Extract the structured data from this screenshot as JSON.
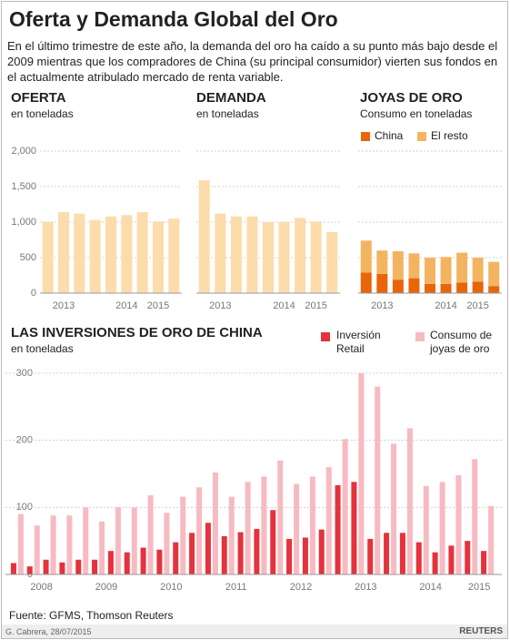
{
  "title": "Oferta y Demanda Global del Oro",
  "subtitle": "En el último trimestre de este año, la demanda del oro ha caído a su punto más bajo desde el 2009 mientras que los compradores de China (su principal consumidor) vierten sus fondos en el actualmente atribulado mercado de renta variable.",
  "source": "Fuente: GFMS,  Thomson Reuters",
  "credit": "G. Cabrera, 28/07/2015",
  "logo": "REUTERS",
  "chart_data": [
    {
      "type": "bar",
      "title": "OFERTA",
      "subtitle": "en toneladas",
      "categories": [
        null,
        "2013",
        null,
        null,
        null,
        "2014",
        null,
        "2015",
        null
      ],
      "values": [
        1000,
        1140,
        1120,
        1030,
        1080,
        1100,
        1140,
        1010,
        1050
      ],
      "color": "#fcdcab",
      "ylim": [
        0,
        2000
      ],
      "yticks": [
        0,
        500,
        {
          "value": 1000,
          "label": "1,000"
        },
        {
          "value": 1500,
          "label": "1,500"
        },
        {
          "value": 2000,
          "label": "2,000"
        }
      ],
      "grid": true
    },
    {
      "type": "bar",
      "title": "DEMANDA",
      "subtitle": "en toneladas",
      "categories": [
        null,
        "2013",
        null,
        null,
        null,
        "2014",
        null,
        "2015",
        null
      ],
      "values": [
        1590,
        1120,
        1080,
        1080,
        1000,
        1000,
        1060,
        1010,
        860
      ],
      "color": "#fcdcab",
      "ylim": [
        0,
        2000
      ],
      "yticks": [
        0,
        500,
        1000,
        1500,
        2000
      ],
      "grid": true
    },
    {
      "type": "stacked_bar",
      "title": "JOYAS DE ORO",
      "subtitle": "Consumo en toneladas",
      "categories": [
        null,
        "2013",
        null,
        null,
        null,
        "2014",
        null,
        "2015",
        null
      ],
      "series": [
        {
          "name": "China",
          "color": "#e8650a",
          "values": [
            290,
            270,
            190,
            210,
            130,
            130,
            150,
            160,
            100
          ]
        },
        {
          "name": "El resto",
          "color": "#f3b461",
          "values": [
            450,
            330,
            400,
            350,
            370,
            380,
            420,
            340,
            340
          ]
        }
      ],
      "ylim": [
        0,
        2000
      ],
      "yticks": [
        0,
        500,
        1000,
        1500,
        2000
      ],
      "grid": true
    },
    {
      "type": "grouped_bar",
      "title": "LAS INVERSIONES DE ORO DE CHINA",
      "subtitle": "en toneladas",
      "categories": [
        null,
        "2008",
        null,
        null,
        null,
        "2009",
        null,
        null,
        null,
        "2010",
        null,
        null,
        null,
        "2011",
        null,
        null,
        null,
        "2012",
        null,
        null,
        null,
        "2013",
        null,
        null,
        null,
        "2014",
        null,
        null,
        "2015",
        null
      ],
      "series": [
        {
          "name": "Inversión Retail",
          "color": "#e5323c",
          "values": [
            17,
            12,
            22,
            18,
            22,
            22,
            35,
            33,
            40,
            37,
            48,
            62,
            77,
            57,
            63,
            68,
            96,
            53,
            55,
            67,
            133,
            138,
            53,
            62,
            62,
            48,
            33,
            43,
            50,
            35
          ]
        },
        {
          "name": "Consumo de joyas de oro",
          "color": "#f7bac0",
          "values": [
            90,
            73,
            88,
            88,
            100,
            79,
            100,
            100,
            118,
            92,
            116,
            130,
            152,
            116,
            138,
            146,
            170,
            135,
            146,
            160,
            202,
            300,
            280,
            195,
            218,
            132,
            138,
            148,
            172,
            102
          ]
        }
      ],
      "ylim": [
        0,
        310
      ],
      "yticks": [
        0,
        100,
        200,
        300
      ],
      "grid": true
    }
  ]
}
